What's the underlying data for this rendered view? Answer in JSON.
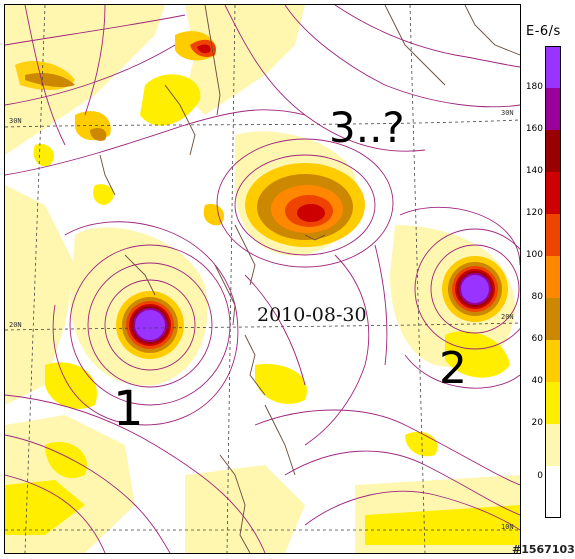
{
  "map": {
    "date": "2010-08-30",
    "storm_labels": [
      "1",
      "2",
      "3..?"
    ],
    "lat_labels": {
      "left_30n": "30N",
      "left_20n": "20N",
      "right_30n": "30N",
      "right_20n": "20N",
      "right_10n": "10N"
    },
    "watermark": "#1567103"
  },
  "legend": {
    "unit": "E-6/s",
    "ticks": [
      "180",
      "160",
      "140",
      "120",
      "100",
      "80",
      "60",
      "40",
      "20",
      "0"
    ],
    "colors": [
      "#9933ff",
      "#990099",
      "#990000",
      "#cc0000",
      "#ee4400",
      "#ff8800",
      "#cc8800",
      "#ffcc00",
      "#ffee00",
      "#fff7b0",
      "#ffffff"
    ]
  }
}
